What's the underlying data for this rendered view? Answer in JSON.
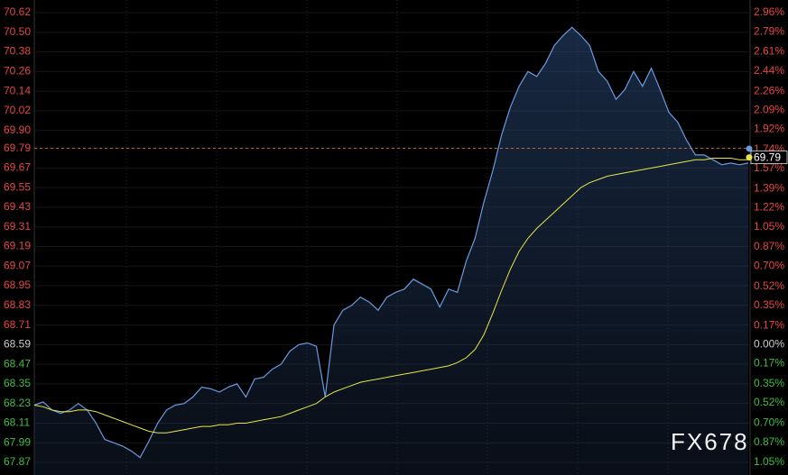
{
  "chart_data": {
    "type": "line",
    "ylim": [
      67.87,
      70.62
    ],
    "yticks": [
      70.62,
      {
        "value": 70.5,
        "label": "70.50"
      },
      70.38,
      70.26,
      70.14,
      70.02,
      {
        "value": 69.9,
        "label": "69.90"
      },
      69.79,
      69.67,
      69.55,
      69.43,
      69.31,
      69.19,
      69.07,
      68.95,
      68.83,
      68.71,
      68.59,
      68.47,
      68.35,
      68.23,
      68.11,
      67.99,
      67.87
    ],
    "y2lim": [
      -1.05,
      2.96
    ],
    "y2ticks": [
      {
        "value": 2.96,
        "label": "2.96%"
      },
      {
        "value": 2.79,
        "label": "2.79%"
      },
      {
        "value": 2.61,
        "label": "2.61%"
      },
      {
        "value": 2.44,
        "label": "2.44%"
      },
      {
        "value": 2.26,
        "label": "2.26%"
      },
      {
        "value": 2.09,
        "label": "2.09%"
      },
      {
        "value": 1.92,
        "label": "1.92%"
      },
      {
        "value": 1.74,
        "label": "1.74%"
      },
      {
        "value": 1.57,
        "label": "1.57%"
      },
      {
        "value": 1.39,
        "label": "1.39%"
      },
      {
        "value": 1.22,
        "label": "1.22%"
      },
      {
        "value": 1.05,
        "label": "1.05%"
      },
      {
        "value": 0.87,
        "label": "0.87%"
      },
      {
        "value": 0.7,
        "label": "0.70%"
      },
      {
        "value": 0.52,
        "label": "0.52%"
      },
      {
        "value": 0.35,
        "label": "0.35%"
      },
      {
        "value": 0.17,
        "label": "0.17%"
      },
      {
        "value": 0,
        "label": "0.00%"
      },
      {
        "value": -0.17,
        "label": "0.17%"
      },
      {
        "value": -0.35,
        "label": "0.35%"
      },
      {
        "value": -0.52,
        "label": "0.52%"
      },
      {
        "value": -0.7,
        "label": "0.70%"
      },
      {
        "value": -0.87,
        "label": "0.87%"
      },
      {
        "value": -1.05,
        "label": "1.05%"
      }
    ],
    "grid": true,
    "up_color": "#e84545",
    "down_color": "#3fbf3f",
    "flat_color": "#cccccc",
    "current_price": 69.79,
    "watermark": "FX678",
    "series": [
      {
        "color": "#6a9be0",
        "values": [
          68.22,
          68.24,
          68.19,
          68.17,
          68.19,
          68.23,
          68.19,
          68.11,
          68.01,
          67.99,
          67.97,
          67.94,
          67.9,
          68.0,
          68.11,
          68.19,
          68.22,
          68.23,
          68.27,
          68.33,
          68.32,
          68.3,
          68.33,
          68.35,
          68.27,
          68.38,
          68.39,
          68.44,
          68.47,
          68.55,
          68.59,
          68.6,
          68.58,
          68.27,
          68.71,
          68.8,
          68.83,
          68.88,
          68.85,
          68.8,
          68.88,
          68.91,
          68.93,
          68.99,
          68.96,
          68.93,
          68.82,
          68.93,
          68.91,
          69.1,
          69.24,
          69.46,
          69.65,
          69.87,
          70.04,
          70.17,
          70.26,
          70.23,
          70.31,
          70.42,
          70.48,
          70.53,
          70.48,
          70.42,
          70.26,
          70.2,
          70.09,
          70.15,
          70.26,
          70.17,
          70.28,
          70.15,
          70.01,
          69.95,
          69.84,
          69.75,
          69.75,
          69.72,
          69.69,
          69.7,
          69.69,
          69.7
        ]
      },
      {
        "color": "#e6e64a",
        "values": [
          68.22,
          68.21,
          68.19,
          68.18,
          68.18,
          68.19,
          68.19,
          68.18,
          68.16,
          68.14,
          68.12,
          68.1,
          68.08,
          68.06,
          68.05,
          68.05,
          68.06,
          68.07,
          68.08,
          68.09,
          68.09,
          68.1,
          68.1,
          68.11,
          68.11,
          68.12,
          68.13,
          68.14,
          68.15,
          68.17,
          68.19,
          68.21,
          68.23,
          68.27,
          68.3,
          68.32,
          68.34,
          68.36,
          68.37,
          68.38,
          68.39,
          68.4,
          68.41,
          68.42,
          68.43,
          68.44,
          68.45,
          68.46,
          68.48,
          68.51,
          68.56,
          68.65,
          68.78,
          68.92,
          69.05,
          69.16,
          69.24,
          69.3,
          69.35,
          69.4,
          69.45,
          69.5,
          69.55,
          69.58,
          69.6,
          69.62,
          69.63,
          69.64,
          69.65,
          69.66,
          69.67,
          69.68,
          69.69,
          69.7,
          69.71,
          69.72,
          69.72,
          69.73,
          69.73,
          69.73,
          69.72,
          69.72
        ]
      }
    ]
  }
}
